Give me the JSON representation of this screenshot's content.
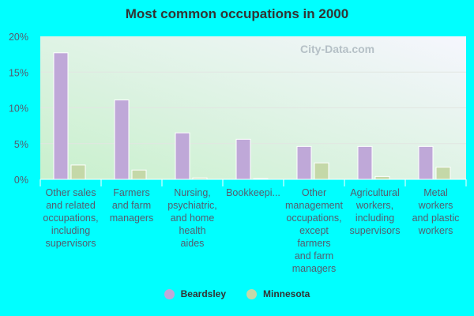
{
  "chart_data": {
    "type": "bar",
    "title": "Most common occupations in 2000",
    "categories": [
      "Other sales\nand related\noccupations,\nincluding\nsupervisors",
      "Farmers\nand farm\nmanagers",
      "Nursing,\npsychiatric,\nand home\nhealth\naides",
      "Bookkeepi...",
      "Other\nmanagement\noccupations,\nexcept\nfarmers\nand farm\nmanagers",
      "Agricultural\nworkers,\nincluding\nsupervisors",
      "Metal\nworkers\nand plastic\nworkers"
    ],
    "series": [
      {
        "name": "Beardsley",
        "color": "#bfa8d8",
        "values": [
          17.7,
          11.1,
          6.5,
          5.6,
          4.6,
          4.6,
          4.6
        ]
      },
      {
        "name": "Minnesota",
        "color": "#c4d8a8",
        "values": [
          2.0,
          1.3,
          0.2,
          0.1,
          2.3,
          0.4,
          1.7
        ]
      }
    ],
    "ylim": [
      0,
      20
    ],
    "yticks": [
      "0%",
      "5%",
      "10%",
      "15%",
      "20%"
    ],
    "grid": true,
    "legend": "bottom",
    "watermark": "City-Data.com"
  }
}
